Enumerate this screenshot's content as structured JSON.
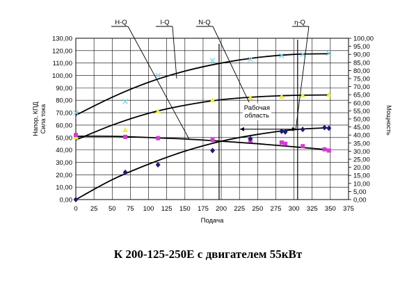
{
  "caption": "К 200-125-250Е с двигателем 55кВт",
  "chart_data": {
    "type": "scatter",
    "xlabel": "Подача",
    "ylabel_left": [
      "Напор, КПД",
      "Сила тока"
    ],
    "ylabel_right": "Мощность",
    "xlim": [
      0,
      375
    ],
    "x_ticks": [
      "0",
      "25",
      "50",
      "75",
      "100",
      "125",
      "150",
      "175",
      "200",
      "225",
      "250",
      "275",
      "300",
      "325",
      "350",
      "375"
    ],
    "ylim_left": [
      0,
      130
    ],
    "y_left_ticks": [
      "0,00",
      "10,00",
      "20,00",
      "30,00",
      "40,00",
      "50,00",
      "60,00",
      "70,00",
      "80,00",
      "90,00",
      "100,00",
      "110,00",
      "120,00",
      "130,00"
    ],
    "ylim_right": [
      0,
      100
    ],
    "y_right_ticks": [
      "0,00",
      "5,00",
      "10,00",
      "15,00",
      "20,00",
      "25,00",
      "30,00",
      "35,00",
      "40,00",
      "45,00",
      "50,00",
      "55,00",
      "60,00",
      "65,00",
      "70,00",
      "75,00",
      "80,00",
      "85,00",
      "90,00",
      "95,00",
      "100,00"
    ],
    "grid": true,
    "colors": {
      "I-Q": "#7fd6ea",
      "N-Q": "#f2ee3c",
      "H-Q": "#d43ad4",
      "eta-Q": "#1b1b7a",
      "fit": "#000000"
    },
    "series": [
      {
        "name": "I-Q",
        "marker": "x",
        "x": [
          0,
          68,
          113,
          188,
          240,
          283,
          312,
          348
        ],
        "y": [
          70,
          79,
          100,
          112,
          113,
          116,
          117,
          118
        ],
        "fit_x": [
          0,
          50,
          100,
          150,
          200,
          250,
          300,
          350
        ],
        "fit_y": [
          68,
          82.5,
          94.5,
          103.5,
          110,
          114.5,
          117,
          117.5
        ]
      },
      {
        "name": "N-Q",
        "marker": "triangle",
        "x": [
          0,
          68,
          113,
          188,
          240,
          283,
          312,
          348
        ],
        "y": [
          50,
          56,
          71,
          80,
          82,
          83,
          84,
          84.5
        ],
        "fit_x": [
          0,
          50,
          100,
          150,
          200,
          250,
          300,
          350
        ],
        "fit_y": [
          48,
          60,
          69.5,
          76,
          80.5,
          82.8,
          84,
          84.3
        ]
      },
      {
        "name": "H-Q",
        "marker": "square",
        "x": [
          0,
          68,
          113,
          188,
          240,
          283,
          288,
          312,
          342,
          348
        ],
        "y": [
          52,
          50.5,
          49.5,
          48,
          47.5,
          46,
          45,
          43,
          40.5,
          39.5
        ],
        "fit_x": [
          0,
          50,
          100,
          150,
          200,
          250,
          300,
          350
        ],
        "fit_y": [
          51,
          51,
          50,
          48.8,
          47,
          45,
          42.5,
          40
        ]
      },
      {
        "name": "η-Q",
        "marker": "diamond",
        "x": [
          0,
          68,
          113,
          188,
          240,
          283,
          288,
          312,
          342,
          348
        ],
        "y": [
          0,
          22,
          28,
          39.5,
          49,
          55,
          54.5,
          56.5,
          58,
          57.5
        ],
        "fit_x": [
          0,
          50,
          100,
          150,
          200,
          250,
          300,
          350
        ],
        "fit_y": [
          0,
          16,
          28.5,
          39,
          47,
          52.5,
          56.3,
          58
        ]
      }
    ],
    "operating_range": {
      "label": [
        "Рабочая",
        "область"
      ],
      "x_start": 197,
      "x_end": 305,
      "y": 50
    },
    "curve_labels": [
      "H-Q",
      "I-Q",
      "N-Q",
      "η-Q"
    ]
  }
}
